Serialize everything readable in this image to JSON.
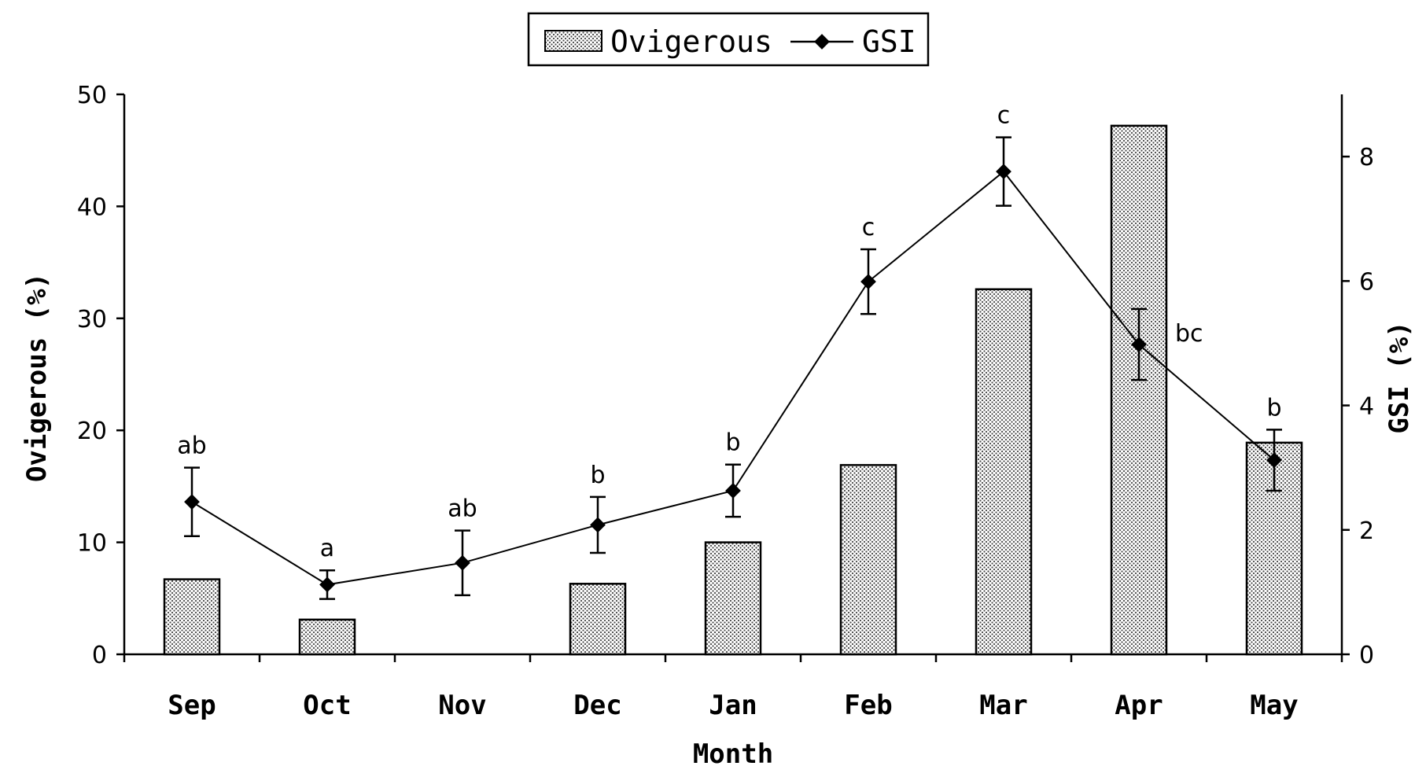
{
  "chart_data": {
    "type": "bar",
    "categories": [
      "Sep",
      "Oct",
      "Nov",
      "Dec",
      "Jan",
      "Feb",
      "Mar",
      "Apr",
      "May"
    ],
    "xlabel": "Month",
    "legend": {
      "placement": "top-center",
      "entries": [
        "Ovigerous",
        "GSI"
      ]
    },
    "grid": false,
    "series": [
      {
        "name": "Ovigerous",
        "type": "bar",
        "axis": "left",
        "values": [
          6.7,
          3.1,
          0,
          6.3,
          10.0,
          16.9,
          32.6,
          47.2,
          18.9
        ]
      },
      {
        "name": "GSI",
        "type": "line",
        "axis": "right",
        "values": [
          2.45,
          1.12,
          1.47,
          2.08,
          2.63,
          5.99,
          7.76,
          4.98,
          3.12
        ],
        "error": [
          0.55,
          0.23,
          0.52,
          0.45,
          0.42,
          0.52,
          0.55,
          0.57,
          0.49
        ],
        "labels": [
          "ab",
          "a",
          "ab",
          "b",
          "b",
          "c",
          "c",
          "bc",
          "b"
        ]
      }
    ],
    "y_left": {
      "label": "Ovigerous (%)",
      "lim": [
        0,
        50
      ],
      "ticks": [
        "0",
        "10",
        "20",
        "30",
        "40",
        "50"
      ]
    },
    "y_right": {
      "label": "GSI (%)",
      "lim": [
        0,
        9
      ],
      "ticks": [
        "0",
        "2",
        "4",
        "6",
        "8"
      ]
    }
  }
}
